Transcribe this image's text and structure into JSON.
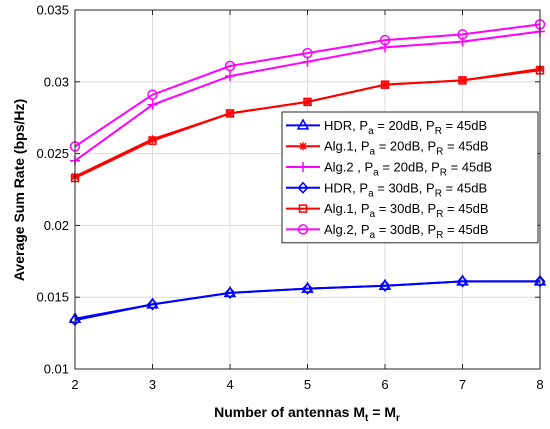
{
  "chart_data": {
    "type": "line",
    "title": "",
    "xlabel": "Number of antennas",
    "xlabel_math": {
      "M": "M",
      "t": "t",
      "eq": " = ",
      "M2": "M",
      "r": "r"
    },
    "ylabel": "Average Sum Rate (bps/Hz)",
    "xlim": [
      2,
      8
    ],
    "ylim": [
      0.01,
      0.035
    ],
    "xticks": [
      "2",
      "3",
      "4",
      "5",
      "6",
      "7",
      "8"
    ],
    "yticks": [
      "0.01",
      "0.015",
      "0.02",
      "0.025",
      "0.03",
      "0.035"
    ],
    "grid": true,
    "legend_position": "right",
    "x": [
      2,
      3,
      4,
      5,
      6,
      7,
      8
    ],
    "series": [
      {
        "name": "HDR, P_a = 20dB, P_R = 45dB",
        "label_parts": [
          "HDR, P",
          "a",
          " = 20dB, P",
          "R",
          " = 45dB"
        ],
        "color": "#0000ff",
        "marker": "triangle",
        "values": [
          0.0135,
          0.0145,
          0.0153,
          0.0156,
          0.0158,
          0.0161,
          0.0161
        ]
      },
      {
        "name": "Alg.1, P_a = 20dB, P_R = 45dB",
        "label_parts": [
          "Alg.1, P",
          "a",
          " = 20dB, P",
          "R",
          " = 45dB"
        ],
        "color": "#ff0000",
        "marker": "star",
        "values": [
          0.0234,
          0.026,
          0.0278,
          0.0286,
          0.0298,
          0.0301,
          0.0309
        ]
      },
      {
        "name": "Alg.2 , P_a = 20dB, P_R = 45dB",
        "label_parts": [
          "Alg.2 , P",
          "a",
          " = 20dB, P",
          "R",
          " = 45dB"
        ],
        "color": "#ff00ff",
        "marker": "plus",
        "values": [
          0.0245,
          0.0284,
          0.0304,
          0.0314,
          0.0324,
          0.0328,
          0.0335
        ]
      },
      {
        "name": "HDR, P_a = 30dB, P_R = 45dB",
        "label_parts": [
          "HDR, P",
          "a",
          " = 30dB, P",
          "R",
          " = 45dB"
        ],
        "color": "#0000ff",
        "marker": "diamond",
        "values": [
          0.0134,
          0.0145,
          0.0153,
          0.0156,
          0.0158,
          0.0161,
          0.0161
        ]
      },
      {
        "name": "Alg.1, P_a = 30dB, P_R = 45dB",
        "label_parts": [
          "Alg.1, P",
          "a",
          " = 30dB, P",
          "R",
          " = 45dB"
        ],
        "color": "#ff0000",
        "marker": "square",
        "values": [
          0.0233,
          0.0259,
          0.0278,
          0.0286,
          0.0298,
          0.0301,
          0.0308
        ]
      },
      {
        "name": "Alg.2, P_a = 30dB, P_R = 45dB",
        "label_parts": [
          "Alg.2, P",
          "a",
          " = 30dB, P",
          "R",
          " = 45dB"
        ],
        "color": "#ff00ff",
        "marker": "circle",
        "values": [
          0.0255,
          0.0291,
          0.0311,
          0.032,
          0.0329,
          0.0333,
          0.034
        ]
      }
    ]
  }
}
